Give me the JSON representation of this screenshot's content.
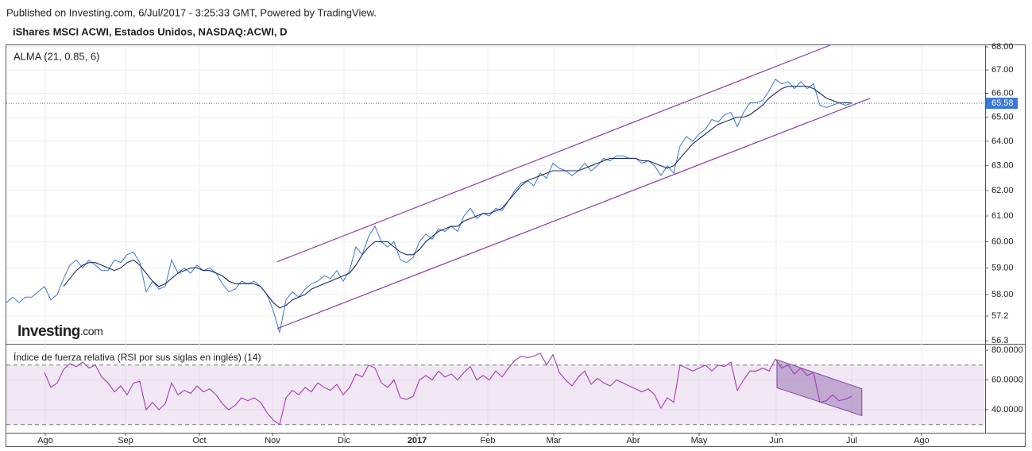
{
  "header": {
    "published": "Published on Investing.com, 6/Jul/2017 - 3:25:33 GMT, Powered by TradingView.",
    "instrument": "iShares MSCI ACWI, Estados Unidos, NASDAQ:ACWI, D"
  },
  "logo": {
    "name": "Investing",
    "suffix": ".com"
  },
  "chart_data": [
    {
      "type": "line",
      "title": "ALMA (21, 0.85, 6)",
      "log_scale": true,
      "grid": true,
      "ylim": [
        56.22,
        68.07
      ],
      "yticks": [
        {
          "value": 68,
          "label": "68.00"
        },
        {
          "value": 67,
          "label": "67.00"
        },
        {
          "value": 66,
          "label": "66.00"
        },
        {
          "value": 65,
          "label": "65.00"
        },
        {
          "value": 64,
          "label": "64.00"
        },
        {
          "value": 63,
          "label": "63.00"
        },
        {
          "value": 62,
          "label": "62.00"
        },
        {
          "value": 61,
          "label": "61.00"
        },
        {
          "value": 60,
          "label": "60.00"
        },
        {
          "value": 59,
          "label": "59.00"
        },
        {
          "value": 58,
          "label": "58.00"
        },
        57.2,
        56.3
      ],
      "last_value": 65.58,
      "last_color": "#3c78d8",
      "series": [
        {
          "color": "#3c78d8",
          "values": [
            57.7,
            57.9,
            57.7,
            57.9,
            57.9,
            58.1,
            58.3,
            57.8,
            58.0,
            58.6,
            59.1,
            59.3,
            59.0,
            59.3,
            59.1,
            58.9,
            58.9,
            59.3,
            59.2,
            59.5,
            59.6,
            59.2,
            58.1,
            58.5,
            58.2,
            58.3,
            59.3,
            58.8,
            59.0,
            58.8,
            59.1,
            58.9,
            59.0,
            58.8,
            58.4,
            58.1,
            58.2,
            58.5,
            58.4,
            58.5,
            58.3,
            58.0,
            57.4,
            56.6,
            57.8,
            58.1,
            57.9,
            58.2,
            58.4,
            58.5,
            58.7,
            58.6,
            58.9,
            58.5,
            58.9,
            59.8,
            59.5,
            60.2,
            60.6,
            60.0,
            59.8,
            60.0,
            59.3,
            59.2,
            59.4,
            60.0,
            60.3,
            60.1,
            60.5,
            60.4,
            60.6,
            60.4,
            61.0,
            61.3,
            60.9,
            61.1,
            61.0,
            61.3,
            61.2,
            61.6,
            62.0,
            62.3,
            62.4,
            62.2,
            62.7,
            62.5,
            63.1,
            62.9,
            62.8,
            62.6,
            62.8,
            63.1,
            62.8,
            63.0,
            63.3,
            63.2,
            63.4,
            63.4,
            63.3,
            63.3,
            63.1,
            63.2,
            63.0,
            62.6,
            63.0,
            62.7,
            63.8,
            64.2,
            64.0,
            64.3,
            64.5,
            64.9,
            64.8,
            65.1,
            65.2,
            64.6,
            65.2,
            65.6,
            65.6,
            65.7,
            66.1,
            66.6,
            66.4,
            66.5,
            66.2,
            66.5,
            66.2,
            66.4,
            65.5,
            65.4,
            65.5,
            65.6,
            65.5,
            65.58
          ]
        },
        {
          "color": "#1b2a66",
          "values": [
            null,
            null,
            null,
            null,
            null,
            null,
            null,
            null,
            null,
            58.3,
            58.6,
            58.9,
            59.1,
            59.2,
            59.2,
            59.1,
            59.0,
            58.9,
            59.0,
            59.2,
            59.3,
            59.1,
            58.8,
            58.5,
            58.3,
            58.4,
            58.6,
            58.8,
            58.9,
            59.0,
            59.0,
            58.9,
            58.9,
            58.8,
            58.7,
            58.5,
            58.4,
            58.4,
            58.4,
            58.4,
            58.3,
            58.0,
            57.7,
            57.5,
            57.6,
            57.8,
            57.9,
            58.0,
            58.2,
            58.3,
            58.4,
            58.5,
            58.6,
            58.7,
            58.8,
            59.1,
            59.5,
            59.8,
            60.0,
            60.0,
            60.0,
            59.8,
            59.6,
            59.5,
            59.5,
            59.7,
            60.0,
            60.2,
            60.4,
            60.5,
            60.6,
            60.6,
            60.8,
            60.9,
            61.0,
            61.1,
            61.1,
            61.2,
            61.3,
            61.6,
            61.9,
            62.2,
            62.4,
            62.5,
            62.6,
            62.7,
            62.8,
            62.8,
            62.8,
            62.8,
            62.8,
            62.9,
            63.0,
            63.1,
            63.2,
            63.3,
            63.3,
            63.3,
            63.3,
            63.3,
            63.2,
            63.2,
            63.1,
            63.0,
            62.9,
            63.0,
            63.3,
            63.6,
            63.9,
            64.1,
            64.3,
            64.5,
            64.7,
            64.8,
            64.9,
            65.0,
            65.0,
            65.1,
            65.3,
            65.5,
            65.8,
            66.0,
            66.2,
            66.3,
            66.3,
            66.3,
            66.3,
            66.2,
            66.0,
            65.8,
            65.7,
            65.6,
            65.6,
            65.6
          ]
        }
      ],
      "trend_lines": [
        {
          "color": "#8e3fae",
          "x": [
            42.6,
            129.6
          ],
          "y": [
            59.23,
            68.07
          ]
        },
        {
          "color": "#8e3fae",
          "x": [
            42.6,
            135.9
          ],
          "y": [
            56.74,
            65.79
          ]
        }
      ]
    },
    {
      "type": "line",
      "title": "Índice de fuerza relativa (RSI por sus siglas en inglés) (14)",
      "xlim": [
        0,
        154
      ],
      "xticks": [
        {
          "value": 6.125,
          "label": "Ago"
        },
        {
          "value": 18.75,
          "label": "Sep"
        },
        {
          "value": 30.375,
          "label": "Oct"
        },
        {
          "value": 41.875,
          "label": "Nov"
        },
        {
          "value": 53.125,
          "label": "Dic"
        },
        {
          "value": 64.625,
          "label": "2017"
        },
        {
          "value": 75.75,
          "label": "Feb"
        },
        {
          "value": 86.125,
          "label": "Mar"
        },
        {
          "value": 98.625,
          "label": "Abr"
        },
        {
          "value": 109,
          "label": "May"
        },
        {
          "value": 121.125,
          "label": "Jun"
        },
        {
          "value": 133,
          "label": "Jul"
        },
        {
          "value": 144,
          "label": "Ago"
        }
      ],
      "ylim": [
        24.5,
        82.7
      ],
      "yticks": [
        {
          "value": 80,
          "label": "80.0000"
        },
        {
          "value": 60,
          "label": "60.0000"
        },
        {
          "value": 40,
          "label": "40.0000"
        }
      ],
      "bands": [
        30,
        70
      ],
      "band_color": "#9c4fb0",
      "series": [
        {
          "color": "#a23cb5",
          "values": [
            null,
            null,
            null,
            null,
            null,
            null,
            65,
            55,
            58,
            67,
            71,
            69,
            72,
            68,
            70,
            62,
            58,
            52,
            56,
            50,
            58,
            59,
            40,
            45,
            40,
            44,
            58,
            50,
            53,
            51,
            56,
            52,
            54,
            50,
            44,
            40,
            43,
            48,
            46,
            48,
            45,
            38,
            33,
            30,
            48,
            53,
            50,
            55,
            52,
            58,
            55,
            53,
            57,
            50,
            55,
            64,
            62,
            70,
            68,
            58,
            55,
            60,
            48,
            47,
            49,
            60,
            63,
            60,
            66,
            62,
            64,
            60,
            65,
            69,
            60,
            63,
            60,
            66,
            62,
            68,
            73,
            76,
            75,
            76,
            78,
            70,
            77,
            65,
            60,
            56,
            62,
            66,
            57,
            61,
            58,
            56,
            60,
            58,
            56,
            54,
            52,
            54,
            50,
            41,
            48,
            45,
            70,
            68,
            66,
            68,
            70,
            66,
            70,
            69,
            72,
            53,
            60,
            66,
            66,
            68,
            66,
            74,
            68,
            70,
            64,
            68,
            63,
            65,
            45,
            46,
            50,
            46,
            47,
            49
          ]
        }
      ],
      "channel": {
        "color": "#7a4a9e",
        "x": [
          121.25,
          134.6
        ],
        "upper": [
          73.6,
          54.1
        ],
        "lower": [
          54.7,
          36.0
        ]
      }
    }
  ]
}
